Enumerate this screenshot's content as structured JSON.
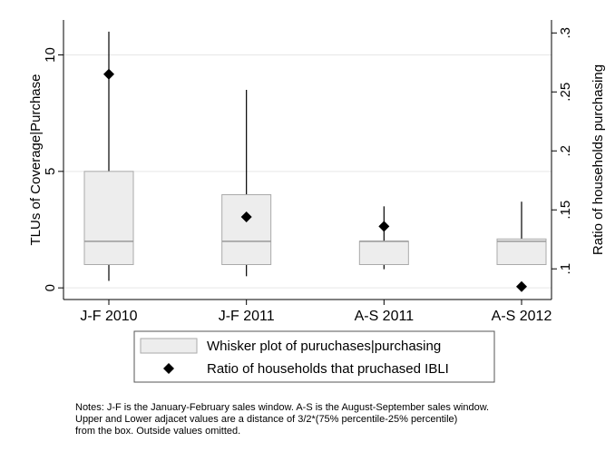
{
  "chart_data": {
    "type": "box",
    "y_label": "TLUs of Coverage|Purchase",
    "y2_label": "Ratio of households purchasing",
    "categories": [
      "J-F 2010",
      "J-F 2011",
      "A-S 2011",
      "A-S 2012"
    ],
    "ylim": [
      -0.5,
      11.5
    ],
    "yticks": [
      0,
      5,
      10
    ],
    "y2lim": [
      0.074,
      0.311
    ],
    "y2ticks": [
      {
        "value": 0.1,
        "label": ".1"
      },
      {
        "value": 0.15,
        "label": ".15"
      },
      {
        "value": 0.2,
        "label": ".2"
      },
      {
        "value": 0.25,
        "label": ".25"
      },
      {
        "value": 0.3,
        "label": ".3"
      }
    ],
    "grid": true,
    "series": [
      {
        "name": "Whisker plot of puruchases|purchasing",
        "color": "#ededed",
        "low": [
          0.3,
          0.5,
          0.8,
          1
        ],
        "q1": [
          1,
          1,
          1,
          1
        ],
        "median": [
          2,
          2,
          2,
          2
        ],
        "q3": [
          5,
          4,
          2,
          2.1
        ],
        "high": [
          11,
          8.5,
          3.5,
          3.7
        ]
      },
      {
        "name": "Ratio of households that pruchased IBLI",
        "color": "#000000",
        "axis": "y2",
        "values": [
          0.265,
          0.144,
          0.136,
          0.085
        ]
      }
    ],
    "notes": [
      "Notes: J-F is the January-February sales window. A-S is the August-September sales window.",
      "Upper and Lower adjacet values are a distance of 3/2*(75% percentile-25% percentile)",
      "from the box. Outside values omitted."
    ]
  }
}
